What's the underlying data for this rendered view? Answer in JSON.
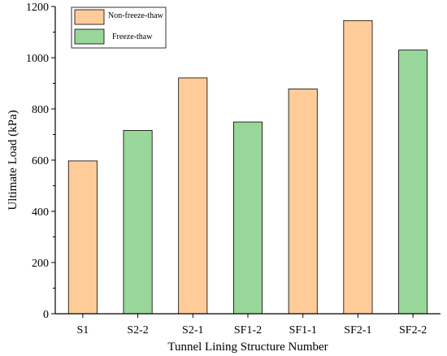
{
  "chart_data": {
    "type": "bar",
    "categories": [
      "S1",
      "S2-2",
      "S2-1",
      "SF1-2",
      "SF1-1",
      "SF2-1",
      "SF2-2"
    ],
    "values": [
      597,
      716,
      921,
      749,
      878,
      1145,
      1030
    ],
    "series_of_category": [
      0,
      1,
      0,
      1,
      0,
      0,
      1
    ],
    "series": [
      {
        "name": "Non-freeze-thaw",
        "color": "#FFCC99"
      },
      {
        "name": "Freeze-thaw",
        "color": "#99D699"
      }
    ],
    "xlabel": "Tunnel Lining Structure Number",
    "ylabel": "Ultimate Load (kPa)",
    "ylim": [
      0,
      1200
    ],
    "yticks": [
      0,
      200,
      400,
      600,
      800,
      1000,
      1200
    ],
    "grid": false,
    "legend_position": "top-left"
  }
}
